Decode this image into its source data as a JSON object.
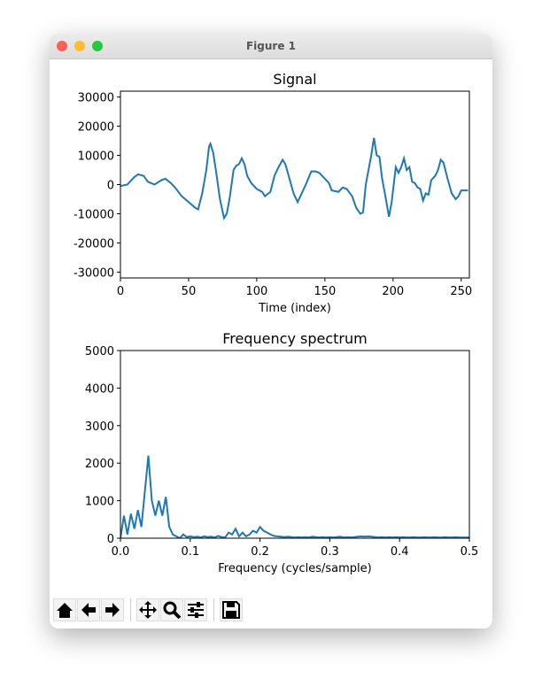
{
  "window": {
    "title": "Figure 1"
  },
  "chart_data": [
    {
      "type": "line",
      "title": "Signal",
      "xlabel": "Time (index)",
      "series": [
        {
          "color": "#1f77b4",
          "x": [
            0,
            5,
            10,
            13,
            17,
            20,
            25,
            30,
            33,
            37,
            40,
            45,
            50,
            55,
            57,
            60,
            63,
            65,
            66,
            68,
            70,
            73,
            76,
            78,
            80,
            83,
            85,
            87,
            89,
            91,
            93,
            96,
            100,
            104,
            106,
            110,
            113,
            116,
            119,
            121,
            124,
            127,
            130,
            133,
            136,
            140,
            143,
            146,
            150,
            153,
            155,
            160,
            163,
            166,
            170,
            173,
            176,
            178,
            180,
            182,
            184,
            186,
            188,
            190,
            192,
            194,
            197,
            199,
            202,
            204,
            206,
            208,
            210,
            212,
            214,
            216,
            218,
            220,
            222,
            224,
            226,
            228,
            231,
            233,
            235,
            237,
            240,
            243,
            246,
            248,
            250,
            255
          ],
          "values": [
            -500,
            0,
            2500,
            3500,
            3000,
            1000,
            0,
            1500,
            2000,
            500,
            -1000,
            -4000,
            -6000,
            -8000,
            -8500,
            -3000,
            5000,
            13000,
            14000,
            11000,
            5000,
            -5000,
            -11500,
            -10000,
            -5000,
            5000,
            6500,
            7000,
            9000,
            7000,
            3000,
            500,
            -1500,
            -2500,
            -4000,
            -2500,
            3000,
            6000,
            8500,
            7000,
            2000,
            -3000,
            -6000,
            -3000,
            0,
            4500,
            4500,
            4000,
            2000,
            500,
            -2000,
            -2500,
            -1000,
            -1500,
            -4000,
            -8000,
            -10000,
            -9500,
            0,
            5000,
            10000,
            16000,
            10000,
            9500,
            2000,
            -3000,
            -11000,
            -6000,
            6000,
            4000,
            6000,
            9000,
            5000,
            6000,
            1000,
            500,
            -1000,
            -1500,
            -5500,
            -3000,
            -3500,
            1500,
            3000,
            5000,
            8500,
            7500,
            2000,
            -3000,
            -5000,
            -4000,
            -2000,
            -2000
          ]
        }
      ],
      "xlim": [
        0,
        256
      ],
      "xticks": [
        0,
        50,
        100,
        150,
        200,
        250
      ],
      "ylim": [
        -32000,
        32000
      ],
      "yticks": [
        -30000,
        -20000,
        -10000,
        0,
        10000,
        20000,
        30000
      ]
    },
    {
      "type": "line",
      "title": "Frequency spectrum",
      "xlabel": "Frequency (cycles/sample)",
      "series": [
        {
          "color": "#1f77b4",
          "x": [
            0,
            0.005,
            0.01,
            0.015,
            0.02,
            0.025,
            0.03,
            0.035,
            0.04,
            0.045,
            0.05,
            0.055,
            0.06,
            0.065,
            0.07,
            0.075,
            0.08,
            0.085,
            0.09,
            0.095,
            0.1,
            0.105,
            0.11,
            0.115,
            0.12,
            0.125,
            0.13,
            0.135,
            0.14,
            0.145,
            0.15,
            0.155,
            0.16,
            0.165,
            0.17,
            0.175,
            0.18,
            0.185,
            0.19,
            0.195,
            0.2,
            0.205,
            0.21,
            0.215,
            0.22,
            0.225,
            0.23,
            0.235,
            0.24,
            0.245,
            0.25,
            0.255,
            0.26,
            0.265,
            0.27,
            0.275,
            0.28,
            0.285,
            0.29,
            0.295,
            0.3,
            0.305,
            0.31,
            0.315,
            0.32,
            0.325,
            0.33,
            0.335,
            0.34,
            0.345,
            0.35,
            0.355,
            0.36,
            0.365,
            0.37,
            0.375,
            0.38,
            0.385,
            0.39,
            0.395,
            0.4,
            0.405,
            0.41,
            0.415,
            0.42,
            0.425,
            0.43,
            0.435,
            0.44,
            0.445,
            0.45,
            0.455,
            0.46,
            0.465,
            0.47,
            0.475,
            0.48,
            0.485,
            0.49,
            0.495,
            0.5
          ],
          "values": [
            0,
            600,
            100,
            650,
            250,
            750,
            300,
            1250,
            2200,
            1000,
            600,
            1000,
            600,
            1100,
            300,
            100,
            50,
            0,
            100,
            30,
            50,
            30,
            40,
            20,
            50,
            30,
            40,
            20,
            60,
            30,
            20,
            150,
            100,
            250,
            50,
            150,
            50,
            100,
            200,
            150,
            300,
            200,
            150,
            100,
            60,
            50,
            40,
            30,
            40,
            30,
            20,
            30,
            20,
            30,
            20,
            40,
            30,
            20,
            30,
            20,
            30,
            20,
            30,
            40,
            20,
            30,
            20,
            30,
            40,
            50,
            40,
            50,
            40,
            30,
            20,
            30,
            20,
            30,
            20,
            30,
            20,
            30,
            20,
            20,
            30,
            20,
            20,
            30,
            20,
            20,
            30,
            20,
            20,
            30,
            20,
            20,
            30,
            20,
            20,
            20,
            20
          ]
        }
      ],
      "xlim": [
        0,
        0.5
      ],
      "xticks": [
        {
          "value": 0,
          "label": "0.0"
        },
        0.1,
        0.2,
        0.3,
        0.4,
        0.5
      ],
      "ylim": [
        0,
        5000
      ],
      "yticks": [
        0,
        1000,
        2000,
        3000,
        4000,
        5000
      ]
    }
  ]
}
